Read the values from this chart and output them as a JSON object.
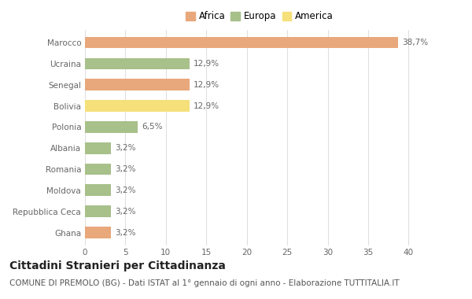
{
  "categories": [
    "Marocco",
    "Ucraina",
    "Senegal",
    "Bolivia",
    "Polonia",
    "Albania",
    "Romania",
    "Moldova",
    "Repubblica Ceca",
    "Ghana"
  ],
  "values": [
    38.7,
    12.9,
    12.9,
    12.9,
    6.5,
    3.2,
    3.2,
    3.2,
    3.2,
    3.2
  ],
  "labels": [
    "38,7%",
    "12,9%",
    "12,9%",
    "12,9%",
    "6,5%",
    "3,2%",
    "3,2%",
    "3,2%",
    "3,2%",
    "3,2%"
  ],
  "colors": [
    "#E8A87C",
    "#A8C08A",
    "#E8A87C",
    "#F5E07A",
    "#A8C08A",
    "#A8C08A",
    "#A8C08A",
    "#A8C08A",
    "#A8C08A",
    "#E8A87C"
  ],
  "legend_labels": [
    "Africa",
    "Europa",
    "America"
  ],
  "legend_colors": [
    "#E8A87C",
    "#A8C08A",
    "#F5E07A"
  ],
  "xlim": [
    0,
    42
  ],
  "xticks": [
    0,
    5,
    10,
    15,
    20,
    25,
    30,
    35,
    40
  ],
  "title": "Cittadini Stranieri per Cittadinanza",
  "subtitle": "COMUNE DI PREMOLO (BG) - Dati ISTAT al 1° gennaio di ogni anno - Elaborazione TUTTITALIA.IT",
  "background_color": "#FFFFFF",
  "plot_bg_color": "#FFFFFF",
  "grid_color": "#E0E0E0",
  "bar_height": 0.55,
  "title_fontsize": 10,
  "subtitle_fontsize": 7.5,
  "label_fontsize": 7.5,
  "tick_fontsize": 7.5,
  "legend_fontsize": 8.5
}
